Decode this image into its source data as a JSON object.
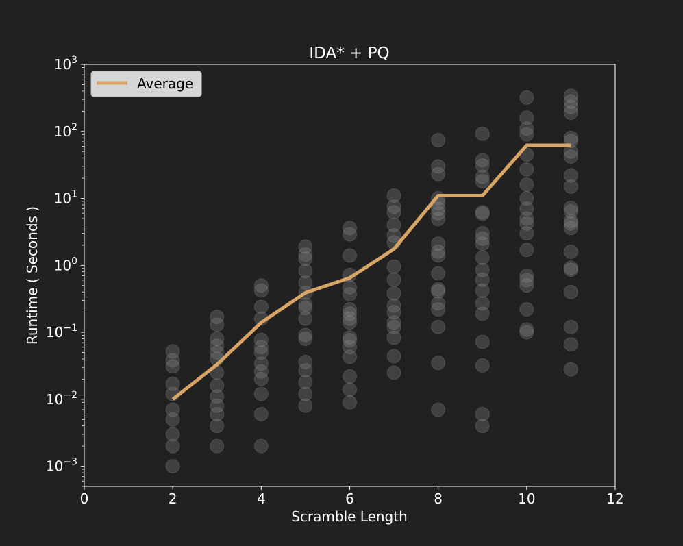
{
  "chart_data": {
    "type": "scatter",
    "title": "IDA* + PQ",
    "xlabel": "Scramble Length",
    "ylabel": "Runtime ( Seconds )",
    "xlim": [
      0,
      12
    ],
    "ylim": [
      0.0005,
      1000
    ],
    "yscale": "log",
    "x_ticks": [
      0,
      2,
      4,
      6,
      8,
      10,
      12
    ],
    "x_tick_labels": [
      "0",
      "2",
      "4",
      "6",
      "8",
      "10",
      "12"
    ],
    "y_ticks": [
      {
        "value": 0.001,
        "base": "10",
        "exp": "−3"
      },
      {
        "value": 0.01,
        "base": "10",
        "exp": "−2"
      },
      {
        "value": 0.1,
        "base": "10",
        "exp": "−1"
      },
      {
        "value": 1,
        "base": "10",
        "exp": "0"
      },
      {
        "value": 10,
        "base": "10",
        "exp": "1"
      },
      {
        "value": 100,
        "base": "10",
        "exp": "2"
      },
      {
        "value": 1000,
        "base": "10",
        "exp": "3"
      }
    ],
    "legend": {
      "placement": "top-left",
      "entries": [
        "Average"
      ]
    },
    "grid": false,
    "colors": {
      "background": "#212121",
      "points": "#8a8a8a",
      "average_line": "#d9a566",
      "axes": "#ffffff",
      "legend_box": "#d6d6d6"
    },
    "average": {
      "name": "Average",
      "x": [
        2,
        3,
        4,
        5,
        6,
        7,
        8,
        9,
        10,
        11
      ],
      "y": [
        0.01,
        0.033,
        0.14,
        0.39,
        0.65,
        1.75,
        11,
        11,
        62,
        62
      ]
    },
    "points": [
      {
        "x": 2,
        "y": [
          0.052,
          0.038,
          0.031,
          0.017,
          0.012,
          0.007,
          0.005,
          0.003,
          0.002,
          0.001
        ]
      },
      {
        "x": 3,
        "y": [
          0.17,
          0.13,
          0.08,
          0.063,
          0.05,
          0.04,
          0.025,
          0.016,
          0.011,
          0.008,
          0.006,
          0.004,
          0.002
        ]
      },
      {
        "x": 4,
        "y": [
          0.5,
          0.42,
          0.24,
          0.16,
          0.077,
          0.06,
          0.05,
          0.034,
          0.026,
          0.02,
          0.012,
          0.006,
          0.002
        ]
      },
      {
        "x": 5,
        "y": [
          1.9,
          1.45,
          1.25,
          0.82,
          0.55,
          0.39,
          0.26,
          0.23,
          0.16,
          0.091,
          0.08,
          0.036,
          0.027,
          0.018,
          0.012,
          0.008
        ]
      },
      {
        "x": 6,
        "y": [
          3.6,
          2.9,
          1.4,
          0.72,
          0.47,
          0.37,
          0.22,
          0.19,
          0.16,
          0.14,
          0.084,
          0.076,
          0.06,
          0.043,
          0.022,
          0.014,
          0.009
        ]
      },
      {
        "x": 7,
        "y": [
          11,
          7.5,
          6.2,
          4,
          2.8,
          2.2,
          0.96,
          0.61,
          0.38,
          0.25,
          0.2,
          0.14,
          0.12,
          0.083,
          0.044,
          0.025
        ]
      },
      {
        "x": 8,
        "y": [
          74,
          30,
          23,
          10,
          8.5,
          7,
          6,
          4.9,
          2.1,
          1.6,
          1.4,
          0.76,
          0.44,
          0.41,
          0.27,
          0.22,
          0.12,
          0.035,
          0.007
        ]
      },
      {
        "x": 9,
        "y": [
          92,
          37,
          31,
          21,
          18,
          6.2,
          5.9,
          3,
          2.5,
          2.1,
          1.3,
          0.85,
          0.61,
          0.42,
          0.27,
          0.19,
          0.072,
          0.032,
          0.006,
          0.004
        ]
      },
      {
        "x": 10,
        "y": [
          320,
          160,
          110,
          90,
          45,
          27,
          16,
          10,
          7,
          5,
          4.2,
          3,
          1.7,
          0.7,
          0.6,
          0.5,
          0.22,
          0.11,
          0.1
        ]
      },
      {
        "x": 11,
        "y": [
          340,
          280,
          230,
          190,
          80,
          72,
          50,
          42,
          22,
          15,
          7.2,
          6.4,
          4.6,
          4.2,
          3.6,
          1.6,
          0.92,
          0.86,
          0.4,
          0.12,
          0.066,
          0.028
        ]
      }
    ]
  }
}
